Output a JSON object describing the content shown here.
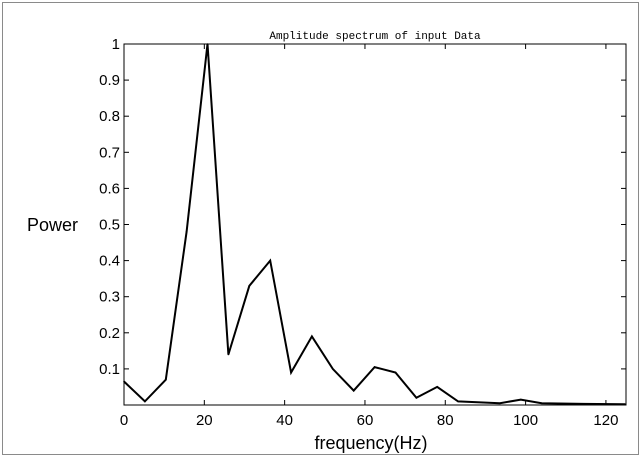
{
  "chart_data": {
    "type": "line",
    "title": "Amplitude spectrum of input Data",
    "xlabel": "frequency(Hz)",
    "ylabel": "Power",
    "xlim": [
      0,
      125
    ],
    "ylim": [
      0,
      1
    ],
    "xticks": [
      0,
      20,
      40,
      60,
      80,
      100,
      120
    ],
    "yticks": [
      0.1,
      0.2,
      0.3,
      0.4,
      0.5,
      0.6,
      0.7,
      0.8,
      0.9,
      1
    ],
    "grid": false,
    "legend": "none",
    "series": [
      {
        "color": "#000000",
        "x": [
          0,
          5.2,
          10.4,
          15.6,
          20.8,
          26,
          31.2,
          36.4,
          41.6,
          46.8,
          52,
          57.2,
          62.4,
          67.6,
          72.8,
          78,
          83.2,
          93.6,
          98.8,
          104,
          114.4,
          124.8
        ],
        "y": [
          0.065,
          0.01,
          0.07,
          0.48,
          1.0,
          0.14,
          0.33,
          0.4,
          0.09,
          0.19,
          0.1,
          0.04,
          0.105,
          0.09,
          0.02,
          0.05,
          0.01,
          0.005,
          0.015,
          0.005,
          0.003,
          0.002
        ]
      }
    ]
  }
}
